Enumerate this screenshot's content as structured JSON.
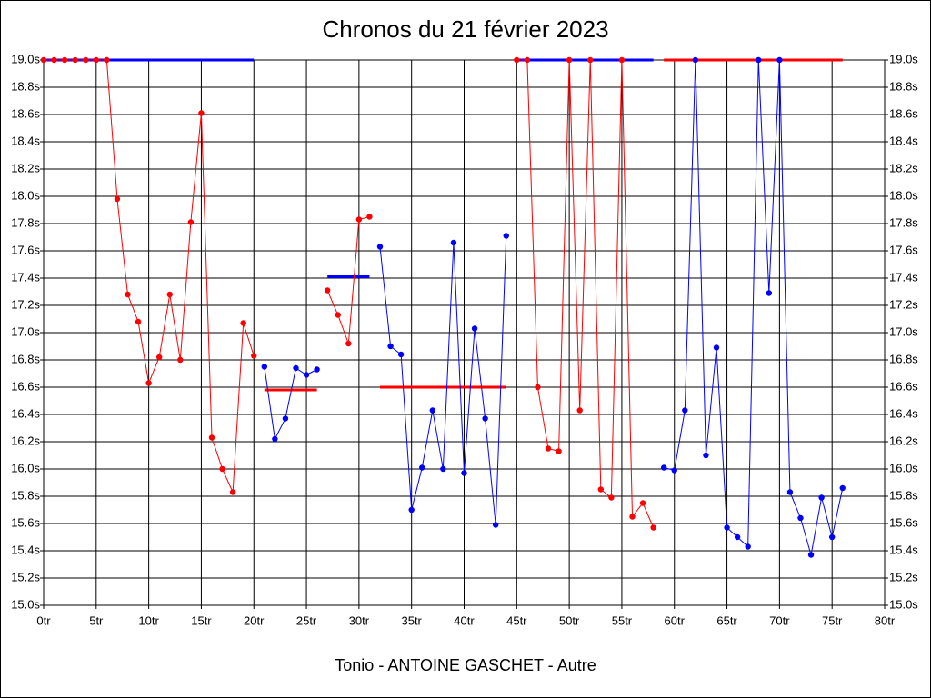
{
  "chart_data": {
    "type": "line",
    "title": "Chronos du 21 février 2023",
    "x_label": "Tonio - ANTOINE GASCHET - Autre",
    "xlim": [
      0,
      80
    ],
    "ylim": [
      15.0,
      19.0
    ],
    "grid": true,
    "xticks": [
      {
        "value": 0,
        "label": "0tr"
      },
      {
        "value": 5,
        "label": "5tr"
      },
      {
        "value": 10,
        "label": "10tr"
      },
      {
        "value": 15,
        "label": "15tr"
      },
      {
        "value": 20,
        "label": "20tr"
      },
      {
        "value": 25,
        "label": "25tr"
      },
      {
        "value": 30,
        "label": "30tr"
      },
      {
        "value": 35,
        "label": "35tr"
      },
      {
        "value": 40,
        "label": "40tr"
      },
      {
        "value": 45,
        "label": "45tr"
      },
      {
        "value": 50,
        "label": "50tr"
      },
      {
        "value": 55,
        "label": "55tr"
      },
      {
        "value": 60,
        "label": "60tr"
      },
      {
        "value": 65,
        "label": "65tr"
      },
      {
        "value": 70,
        "label": "70tr"
      },
      {
        "value": 75,
        "label": "75tr"
      },
      {
        "value": 80,
        "label": "80tr"
      }
    ],
    "yticks": [
      {
        "value": 15.0,
        "label": "15.0s"
      },
      {
        "value": 15.2,
        "label": "15.2s"
      },
      {
        "value": 15.4,
        "label": "15.4s"
      },
      {
        "value": 15.6,
        "label": "15.6s"
      },
      {
        "value": 15.8,
        "label": "15.8s"
      },
      {
        "value": 16.0,
        "label": "16.0s"
      },
      {
        "value": 16.2,
        "label": "16.2s"
      },
      {
        "value": 16.4,
        "label": "16.4s"
      },
      {
        "value": 16.6,
        "label": "16.6s"
      },
      {
        "value": 16.8,
        "label": "16.8s"
      },
      {
        "value": 17.0,
        "label": "17.0s"
      },
      {
        "value": 17.2,
        "label": "17.2s"
      },
      {
        "value": 17.4,
        "label": "17.4s"
      },
      {
        "value": 17.6,
        "label": "17.6s"
      },
      {
        "value": 17.8,
        "label": "17.8s"
      },
      {
        "value": 18.0,
        "label": "18.0s"
      },
      {
        "value": 18.2,
        "label": "18.2s"
      },
      {
        "value": 18.4,
        "label": "18.4s"
      },
      {
        "value": 18.6,
        "label": "18.6s"
      },
      {
        "value": 18.8,
        "label": "18.8s"
      },
      {
        "value": 19.0,
        "label": "19.0s"
      }
    ],
    "series": [
      {
        "color": "#ff0000",
        "x": [
          0,
          1,
          2,
          3,
          4,
          5,
          6,
          7,
          8,
          9,
          10,
          11,
          12,
          13,
          14,
          15,
          16,
          17,
          18,
          19,
          20
        ],
        "values": [
          19.0,
          19.0,
          19.0,
          19.0,
          19.0,
          19.0,
          19.0,
          17.98,
          17.28,
          17.08,
          16.63,
          16.82,
          17.28,
          16.8,
          17.81,
          18.61,
          16.23,
          16.0,
          15.83,
          17.07,
          16.83
        ]
      },
      {
        "color": "#0000ff",
        "x": [
          21,
          22,
          23,
          24,
          25,
          26
        ],
        "values": [
          16.75,
          16.22,
          16.37,
          16.74,
          16.69,
          16.73
        ]
      },
      {
        "color": "#ff0000",
        "x": [
          27,
          28,
          29,
          30,
          31
        ],
        "values": [
          17.31,
          17.13,
          16.92,
          17.83,
          17.85
        ]
      },
      {
        "color": "#0000ff",
        "x": [
          32,
          33,
          34,
          35,
          36,
          37,
          38,
          39,
          40,
          41,
          42,
          43,
          44
        ],
        "values": [
          17.63,
          16.9,
          16.84,
          15.7,
          16.01,
          16.43,
          16.0,
          17.66,
          15.97,
          17.03,
          16.37,
          15.59,
          17.71
        ]
      },
      {
        "color": "#ff0000",
        "x": [
          45,
          46,
          47,
          48,
          49,
          50,
          51,
          52,
          53,
          54,
          55,
          56,
          57,
          58
        ],
        "values": [
          19.0,
          19.0,
          16.6,
          16.15,
          16.13,
          19.0,
          16.43,
          19.0,
          15.85,
          15.79,
          19.0,
          15.65,
          15.75,
          15.57
        ]
      },
      {
        "color": "#0000ff",
        "x": [
          59,
          60,
          61,
          62,
          63,
          64,
          65,
          66,
          67,
          68,
          69,
          70,
          71,
          72,
          73,
          74,
          75,
          76
        ],
        "values": [
          16.01,
          15.99,
          16.43,
          19.0,
          16.1,
          16.89,
          15.57,
          15.5,
          15.43,
          19.0,
          17.29,
          19.0,
          15.83,
          15.64,
          15.37,
          15.79,
          15.5,
          15.86
        ]
      }
    ],
    "averages": [
      {
        "color": "#0000ff",
        "x": [
          0,
          20
        ],
        "value": 19.0
      },
      {
        "color": "#ff0000",
        "x": [
          21,
          26
        ],
        "value": 16.58
      },
      {
        "color": "#0000ff",
        "x": [
          27,
          31
        ],
        "value": 17.41
      },
      {
        "color": "#ff0000",
        "x": [
          32,
          44
        ],
        "value": 16.6
      },
      {
        "color": "#0000ff",
        "x": [
          45,
          58
        ],
        "value": 19.0
      },
      {
        "color": "#ff0000",
        "x": [
          59,
          76
        ],
        "value": 19.0
      }
    ]
  }
}
